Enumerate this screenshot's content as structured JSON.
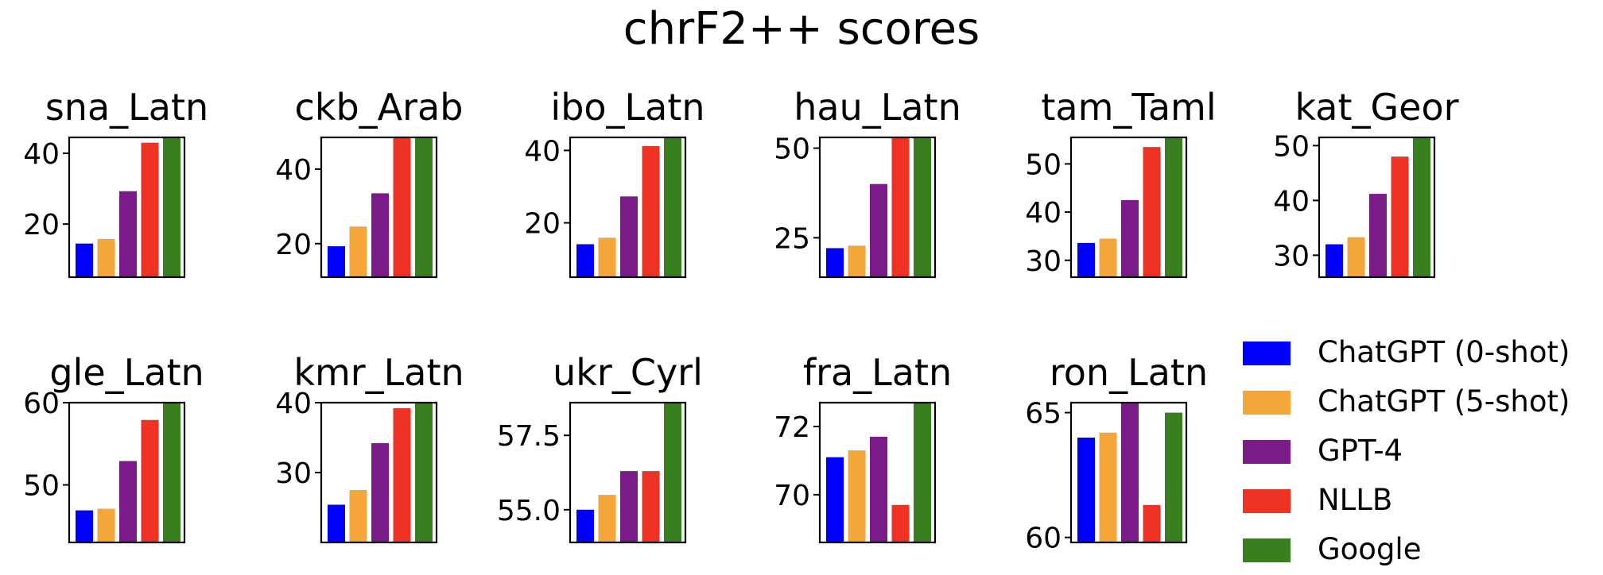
{
  "title": "chrF2++ scores",
  "colors": {
    "ChatGPT (0-shot)": "#0000ff",
    "ChatGPT (5-shot)": "#f5a63b",
    "GPT-4": "#7b1a89",
    "NLLB": "#ee3324",
    "Google": "#3a7e22"
  },
  "legend": {
    "placement": "bottom-right",
    "items": [
      "ChatGPT (0-shot)",
      "ChatGPT (5-shot)",
      "GPT-4",
      "NLLB",
      "Google"
    ]
  },
  "chart_data": [
    {
      "type": "bar",
      "title": "sna_Latn",
      "categories": [
        "ChatGPT (0-shot)",
        "ChatGPT (5-shot)",
        "GPT-4",
        "NLLB",
        "Google"
      ],
      "values": [
        14.5,
        15.8,
        29.3,
        43.0,
        44.5
      ],
      "ylim": [
        5,
        44.5
      ],
      "yticks": [
        20,
        40
      ],
      "tick_labels": [
        "20",
        "40"
      ]
    },
    {
      "type": "bar",
      "title": "ckb_Arab",
      "categories": [
        "ChatGPT (0-shot)",
        "ChatGPT (5-shot)",
        "GPT-4",
        "NLLB",
        "Google"
      ],
      "values": [
        19.3,
        24.6,
        33.5,
        48.5,
        48.5
      ],
      "ylim": [
        11,
        48.5
      ],
      "yticks": [
        20,
        40
      ],
      "tick_labels": [
        "20",
        "40"
      ]
    },
    {
      "type": "bar",
      "title": "ibo_Latn",
      "categories": [
        "ChatGPT (0-shot)",
        "ChatGPT (5-shot)",
        "GPT-4",
        "NLLB",
        "Google"
      ],
      "values": [
        14.1,
        15.9,
        27.3,
        41.2,
        43.6
      ],
      "ylim": [
        5,
        43.6
      ],
      "yticks": [
        20,
        40
      ],
      "tick_labels": [
        "20",
        "40"
      ]
    },
    {
      "type": "bar",
      "title": "hau_Latn",
      "categories": [
        "ChatGPT (0-shot)",
        "ChatGPT (5-shot)",
        "GPT-4",
        "NLLB",
        "Google"
      ],
      "values": [
        22.1,
        22.8,
        40.0,
        53.0,
        53.0
      ],
      "ylim": [
        14,
        53
      ],
      "yticks": [
        25,
        50
      ],
      "tick_labels": [
        "25",
        "50"
      ]
    },
    {
      "type": "bar",
      "title": "tam_Taml",
      "categories": [
        "ChatGPT (0-shot)",
        "ChatGPT (5-shot)",
        "GPT-4",
        "NLLB",
        "Google"
      ],
      "values": [
        33.6,
        34.5,
        42.5,
        53.5,
        55.5
      ],
      "ylim": [
        26.5,
        55.5
      ],
      "yticks": [
        30,
        40,
        50
      ],
      "tick_labels": [
        "30",
        "40",
        "50"
      ]
    },
    {
      "type": "bar",
      "title": "kat_Geor",
      "categories": [
        "ChatGPT (0-shot)",
        "ChatGPT (5-shot)",
        "GPT-4",
        "NLLB",
        "Google"
      ],
      "values": [
        32.0,
        33.3,
        41.2,
        48.0,
        51.5
      ],
      "ylim": [
        26,
        51.5
      ],
      "yticks": [
        30,
        40,
        50
      ],
      "tick_labels": [
        "30",
        "40",
        "50"
      ]
    },
    {
      "type": "bar",
      "title": "gle_Latn",
      "categories": [
        "ChatGPT (0-shot)",
        "ChatGPT (5-shot)",
        "GPT-4",
        "NLLB",
        "Google"
      ],
      "values": [
        46.9,
        47.1,
        52.9,
        57.9,
        60.0
      ],
      "ylim": [
        43,
        60
      ],
      "yticks": [
        50,
        60
      ],
      "tick_labels": [
        "50",
        "60"
      ]
    },
    {
      "type": "bar",
      "title": "kmr_Latn",
      "categories": [
        "ChatGPT (0-shot)",
        "ChatGPT (5-shot)",
        "GPT-4",
        "NLLB",
        "Google"
      ],
      "values": [
        25.4,
        27.5,
        34.2,
        39.2,
        40.0
      ],
      "ylim": [
        20,
        40
      ],
      "yticks": [
        30,
        40
      ],
      "tick_labels": [
        "30",
        "40"
      ]
    },
    {
      "type": "bar",
      "title": "ukr_Cyrl",
      "categories": [
        "ChatGPT (0-shot)",
        "ChatGPT (5-shot)",
        "GPT-4",
        "NLLB",
        "Google"
      ],
      "values": [
        55.0,
        55.5,
        56.3,
        56.3,
        58.6
      ],
      "ylim": [
        53.9,
        58.6
      ],
      "yticks": [
        55.0,
        57.5
      ],
      "tick_labels": [
        "55.0",
        "57.5"
      ]
    },
    {
      "type": "bar",
      "title": "fra_Latn",
      "categories": [
        "ChatGPT (0-shot)",
        "ChatGPT (5-shot)",
        "GPT-4",
        "NLLB",
        "Google"
      ],
      "values": [
        71.1,
        71.3,
        71.7,
        69.7,
        72.7
      ],
      "ylim": [
        68.6,
        72.7
      ],
      "yticks": [
        70,
        72
      ],
      "tick_labels": [
        "70",
        "72"
      ]
    },
    {
      "type": "bar",
      "title": "ron_Latn",
      "categories": [
        "ChatGPT (0-shot)",
        "ChatGPT (5-shot)",
        "GPT-4",
        "NLLB",
        "Google"
      ],
      "values": [
        64.0,
        64.2,
        65.4,
        61.3,
        65.0
      ],
      "ylim": [
        59.8,
        65.4
      ],
      "yticks": [
        60,
        65
      ],
      "tick_labels": [
        "60",
        "65"
      ]
    }
  ]
}
